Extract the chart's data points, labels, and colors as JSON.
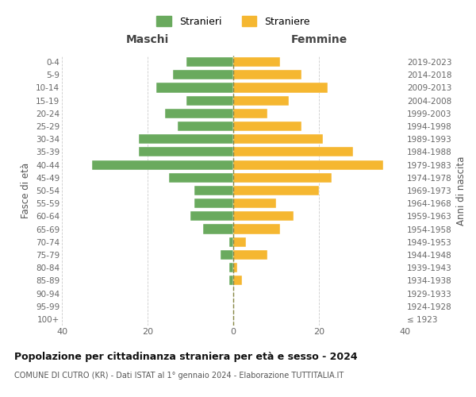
{
  "age_groups": [
    "100+",
    "95-99",
    "90-94",
    "85-89",
    "80-84",
    "75-79",
    "70-74",
    "65-69",
    "60-64",
    "55-59",
    "50-54",
    "45-49",
    "40-44",
    "35-39",
    "30-34",
    "25-29",
    "20-24",
    "15-19",
    "10-14",
    "5-9",
    "0-4"
  ],
  "birth_years": [
    "≤ 1923",
    "1924-1928",
    "1929-1933",
    "1934-1938",
    "1939-1943",
    "1944-1948",
    "1949-1953",
    "1954-1958",
    "1959-1963",
    "1964-1968",
    "1969-1973",
    "1974-1978",
    "1979-1983",
    "1984-1988",
    "1989-1993",
    "1994-1998",
    "1999-2003",
    "2004-2008",
    "2009-2013",
    "2014-2018",
    "2019-2023"
  ],
  "males": [
    0,
    0,
    0,
    1,
    1,
    3,
    1,
    7,
    10,
    9,
    9,
    15,
    33,
    22,
    22,
    13,
    16,
    11,
    18,
    14,
    11
  ],
  "females": [
    0,
    0,
    0,
    2,
    1,
    8,
    3,
    11,
    14,
    10,
    20,
    23,
    35,
    28,
    21,
    16,
    8,
    13,
    22,
    16,
    11
  ],
  "male_color": "#6aaa5e",
  "female_color": "#f5b731",
  "background_color": "#ffffff",
  "grid_color": "#cccccc",
  "dashed_line_color": "#888844",
  "title": "Popolazione per cittadinanza straniera per età e sesso - 2024",
  "subtitle": "COMUNE DI CUTRO (KR) - Dati ISTAT al 1° gennaio 2024 - Elaborazione TUTTITALIA.IT",
  "xlabel_left": "Maschi",
  "xlabel_right": "Femmine",
  "ylabel_left": "Fasce di età",
  "ylabel_right": "Anni di nascita",
  "legend_stranieri": "Stranieri",
  "legend_straniere": "Straniere",
  "xlim": 40
}
